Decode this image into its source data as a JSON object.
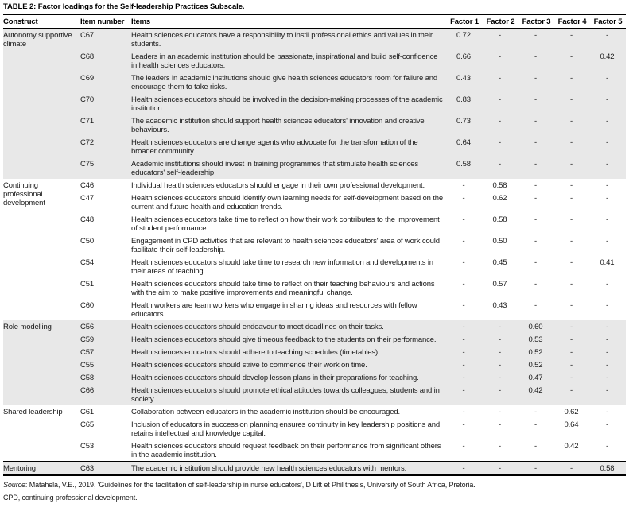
{
  "colors": {
    "section_shade": "#e8e8e8",
    "rule": "#000000",
    "text": "#1a1a1a"
  },
  "table": {
    "title": "TABLE 2: Factor loadings for the Self-leadership Practices Subscale.",
    "columns": [
      "Construct",
      "Item number",
      "Items",
      "Factor 1",
      "Factor 2",
      "Factor 3",
      "Factor 4",
      "Factor 5"
    ],
    "sections": [
      {
        "construct": "Autonomy supportive climate",
        "shaded": true,
        "rule_above": false,
        "rows": [
          {
            "item_number": "C67",
            "item": "Health sciences educators have a responsibility to instil professional ethics and values in their students.",
            "factors": [
              "0.72",
              "-",
              "-",
              "-",
              "-"
            ]
          },
          {
            "item_number": "C68",
            "item": "Leaders in an academic institution should be passionate, inspirational and build self-confidence in health sciences educators.",
            "factors": [
              "0.66",
              "-",
              "-",
              "-",
              "0.42"
            ]
          },
          {
            "item_number": "C69",
            "item": "The leaders in academic institutions should give health sciences educators room for failure and encourage them to take risks.",
            "factors": [
              "0.43",
              "-",
              "-",
              "-",
              "-"
            ]
          },
          {
            "item_number": "C70",
            "item": "Health sciences educators should be involved in the decision-making processes of the academic institution.",
            "factors": [
              "0.83",
              "-",
              "-",
              "-",
              "-"
            ]
          },
          {
            "item_number": "C71",
            "item": "The academic institution should support health sciences educators' innovation and creative behaviours.",
            "factors": [
              "0.73",
              "-",
              "-",
              "-",
              "-"
            ]
          },
          {
            "item_number": "C72",
            "item": "Health sciences educators are change agents who advocate for the transformation of the broader community.",
            "factors": [
              "0.64",
              "-",
              "-",
              "-",
              "-"
            ]
          },
          {
            "item_number": "C75",
            "item": "Academic institutions should invest in training programmes that stimulate health sciences educators' self-leadership",
            "factors": [
              "0.58",
              "-",
              "-",
              "-",
              "-"
            ]
          }
        ]
      },
      {
        "construct": "Continuing professional development",
        "shaded": false,
        "rule_above": false,
        "rows": [
          {
            "item_number": "C46",
            "item": "Individual health sciences educators should engage in their own professional development.",
            "factors": [
              "-",
              "0.58",
              "-",
              "-",
              "-"
            ]
          },
          {
            "item_number": "C47",
            "item": "Health sciences educators should identify own learning needs for self-development based on the current and future health and education trends.",
            "factors": [
              "-",
              "0.62",
              "-",
              "-",
              "-"
            ]
          },
          {
            "item_number": "C48",
            "item": "Health sciences educators take time to reflect on how their work contributes to the improvement of student performance.",
            "factors": [
              "-",
              "0.58",
              "-",
              "-",
              "-"
            ]
          },
          {
            "item_number": "C50",
            "item": "Engagement in CPD activities that are relevant to health sciences educators' area of work could facilitate their self-leadership.",
            "factors": [
              "-",
              "0.50",
              "-",
              "-",
              "-"
            ]
          },
          {
            "item_number": "C54",
            "item": "Health sciences educators should take time to research new information and developments in their areas of teaching.",
            "factors": [
              "-",
              "0.45",
              "-",
              "-",
              "0.41"
            ]
          },
          {
            "item_number": "C51",
            "item": "Health sciences educators should take time to reflect on their teaching behaviours and actions with the aim to make positive improvements and meaningful change.",
            "factors": [
              "-",
              "0.57",
              "-",
              "-",
              "-"
            ]
          },
          {
            "item_number": "C60",
            "item": "Health workers are team workers who engage in sharing ideas and resources with fellow educators.",
            "factors": [
              "-",
              "0.43",
              "-",
              "-",
              "-"
            ]
          }
        ]
      },
      {
        "construct": "Role modelling",
        "shaded": true,
        "rule_above": false,
        "rows": [
          {
            "item_number": "C56",
            "item": "Health sciences educators should endeavour to meet deadlines on their tasks.",
            "factors": [
              "-",
              "-",
              "0.60",
              "-",
              "-"
            ]
          },
          {
            "item_number": "C59",
            "item": "Health sciences educators should give timeous feedback to the students on their performance.",
            "factors": [
              "-",
              "-",
              "0.53",
              "-",
              "-"
            ]
          },
          {
            "item_number": "C57",
            "item": "Health sciences educators should adhere to teaching schedules (timetables).",
            "factors": [
              "-",
              "-",
              "0.52",
              "-",
              "-"
            ]
          },
          {
            "item_number": "C55",
            "item": "Health sciences educators should strive to commence their work on time.",
            "factors": [
              "-",
              "-",
              "0.52",
              "-",
              "-"
            ]
          },
          {
            "item_number": "C58",
            "item": "Health sciences educators should develop lesson plans in their preparations for teaching.",
            "factors": [
              "-",
              "-",
              "0.47",
              "-",
              "-"
            ]
          },
          {
            "item_number": "C66",
            "item": "Health sciences educators should promote ethical attitudes towards colleagues, students and in society.",
            "factors": [
              "-",
              "-",
              "0.42",
              "-",
              "-"
            ]
          }
        ]
      },
      {
        "construct": "Shared leadership",
        "shaded": false,
        "rule_above": false,
        "rows": [
          {
            "item_number": "C61",
            "item": "Collaboration between educators in the academic institution should be encouraged.",
            "factors": [
              "-",
              "-",
              "-",
              "0.62",
              "-"
            ]
          },
          {
            "item_number": "C65",
            "item": "Inclusion of educators in succession planning ensures continuity in key leadership positions and retains intellectual and knowledge capital.",
            "factors": [
              "-",
              "-",
              "-",
              "0.64",
              "-"
            ]
          },
          {
            "item_number": "C53",
            "item": "Health sciences educators should request feedback on their performance from significant others in the academic institution.",
            "factors": [
              "-",
              "-",
              "-",
              "0.42",
              "-"
            ]
          }
        ]
      },
      {
        "construct": "Mentoring",
        "shaded": true,
        "rule_above": true,
        "rows": [
          {
            "item_number": "C63",
            "item": "The academic institution should provide new health sciences educators with mentors.",
            "factors": [
              "-",
              "-",
              "-",
              "-",
              "0.58"
            ]
          }
        ]
      }
    ],
    "source_label": "Source",
    "source_rest": ": Matahela, V.E., 2019, 'Guidelines for the facilitation of self-leadership in nurse educators', D Litt et Phil thesis, University of South Africa, Pretoria.",
    "abbreviation_note": "CPD, continuing professional development."
  }
}
